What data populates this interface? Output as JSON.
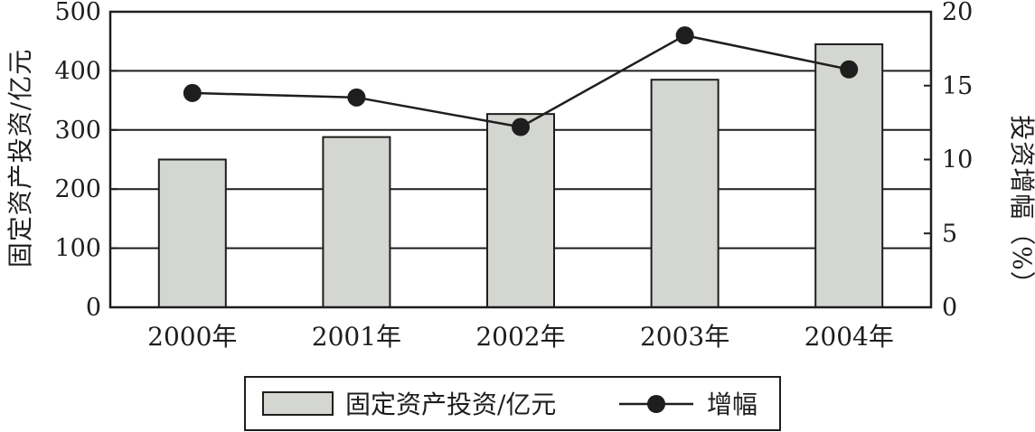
{
  "chart_data": {
    "type": "bar+line",
    "categories": [
      "2000年",
      "2001年",
      "2002年",
      "2003年",
      "2004年"
    ],
    "series": [
      {
        "name": "固定资产投资/亿元",
        "type": "bar",
        "axis": "left",
        "values": [
          250,
          288,
          327,
          385,
          445
        ]
      },
      {
        "name": "增幅",
        "type": "line",
        "axis": "right",
        "values": [
          14.5,
          14.2,
          12.2,
          18.4,
          16.1
        ]
      }
    ],
    "ylabel": "固定资产投资/亿元",
    "y2label": "投资增幅（%）",
    "ylim": [
      0,
      500
    ],
    "y2lim": [
      0,
      20
    ],
    "yticks": [
      "0",
      "100",
      "200",
      "300",
      "400",
      "500"
    ],
    "y2ticks": [
      "0",
      "5",
      "10",
      "15",
      "20"
    ],
    "grid": "horizontal",
    "legend_position": "bottom",
    "colors": {
      "bar_fill": "#d4d6d1",
      "ink": "#1e1e1e"
    }
  }
}
